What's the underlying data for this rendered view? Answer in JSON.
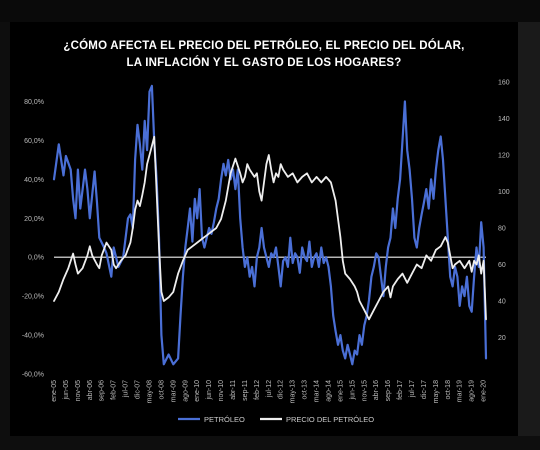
{
  "chart_data": {
    "type": "line",
    "title_line1": "¿CÓMO AFECTA EL PRECIO DEL PETRÓLEO, EL PRECIO DEL DÓLAR,",
    "title_line2": "LA INFLACIÓN Y EL GASTO DE LOS HOGARES?",
    "y_left": {
      "ticks": [
        "80,0%",
        "60,0%",
        "40,0%",
        "20,0%",
        "0,0%",
        "-20,0%",
        "-40,0%",
        "-60,0%"
      ],
      "values": [
        80,
        60,
        40,
        20,
        0,
        -20,
        -40,
        -60
      ],
      "ylim": [
        -60,
        90
      ]
    },
    "y_right": {
      "ticks": [
        "160",
        "140",
        "120",
        "100",
        "80",
        "60",
        "40",
        "20"
      ],
      "values": [
        160,
        140,
        120,
        100,
        80,
        60,
        40,
        20
      ],
      "ylim": [
        0,
        160
      ]
    },
    "x_ticks": [
      "ene-05",
      "jun-05",
      "nov-05",
      "abr-06",
      "sep-06",
      "feb-07",
      "jul-07",
      "dic-07",
      "may-08",
      "oct-08",
      "mar-09",
      "ago-09",
      "ene-10",
      "jun-10",
      "nov-10",
      "abr-11",
      "sep-11",
      "feb-12",
      "jul-12",
      "dic-12",
      "may-13",
      "oct-13",
      "mar-14",
      "ago-14",
      "ene-15",
      "jun-15",
      "nov-15",
      "abr-16",
      "sep-16",
      "feb-17",
      "jul-17",
      "dic-17",
      "may-18",
      "oct-18",
      "mar-19",
      "ago-19",
      "ene-20"
    ],
    "x_range_months": [
      0,
      181
    ],
    "series": [
      {
        "name": "PETRÓLEO",
        "axis": "left",
        "color": "#4a6fd6",
        "points": [
          [
            0,
            40
          ],
          [
            2,
            58
          ],
          [
            4,
            42
          ],
          [
            5,
            52
          ],
          [
            7,
            45
          ],
          [
            8,
            30
          ],
          [
            9,
            20
          ],
          [
            10,
            45
          ],
          [
            11,
            25
          ],
          [
            13,
            45
          ],
          [
            14,
            35
          ],
          [
            15,
            20
          ],
          [
            17,
            44
          ],
          [
            18,
            28
          ],
          [
            19,
            10
          ],
          [
            21,
            5
          ],
          [
            22,
            2
          ],
          [
            24,
            -10
          ],
          [
            25,
            5
          ],
          [
            27,
            -5
          ],
          [
            29,
            0
          ],
          [
            30,
            10
          ],
          [
            31,
            20
          ],
          [
            32,
            22
          ],
          [
            33,
            15
          ],
          [
            34,
            50
          ],
          [
            35,
            68
          ],
          [
            36,
            58
          ],
          [
            37,
            45
          ],
          [
            38,
            70
          ],
          [
            39,
            55
          ],
          [
            40,
            85
          ],
          [
            41,
            88
          ],
          [
            42,
            60
          ],
          [
            43,
            40
          ],
          [
            44,
            10
          ],
          [
            45,
            -40
          ],
          [
            46,
            -55
          ],
          [
            48,
            -50
          ],
          [
            50,
            -55
          ],
          [
            52,
            -52
          ],
          [
            53,
            -30
          ],
          [
            54,
            -10
          ],
          [
            55,
            5
          ],
          [
            56,
            15
          ],
          [
            57,
            25
          ],
          [
            58,
            8
          ],
          [
            59,
            30
          ],
          [
            60,
            20
          ],
          [
            61,
            35
          ],
          [
            62,
            10
          ],
          [
            63,
            5
          ],
          [
            65,
            15
          ],
          [
            66,
            12
          ],
          [
            67,
            18
          ],
          [
            68,
            25
          ],
          [
            69,
            30
          ],
          [
            70,
            40
          ],
          [
            71,
            48
          ],
          [
            72,
            42
          ],
          [
            73,
            50
          ],
          [
            74,
            40
          ],
          [
            75,
            45
          ],
          [
            76,
            35
          ],
          [
            77,
            45
          ],
          [
            78,
            20
          ],
          [
            79,
            5
          ],
          [
            80,
            -5
          ],
          [
            81,
            0
          ],
          [
            82,
            -10
          ],
          [
            83,
            -5
          ],
          [
            84,
            -15
          ],
          [
            85,
            0
          ],
          [
            86,
            5
          ],
          [
            87,
            15
          ],
          [
            88,
            5
          ],
          [
            89,
            0
          ],
          [
            90,
            -5
          ],
          [
            91,
            2
          ],
          [
            92,
            0
          ],
          [
            93,
            5
          ],
          [
            94,
            -5
          ],
          [
            95,
            -15
          ],
          [
            96,
            -2
          ],
          [
            97,
            0
          ],
          [
            98,
            -5
          ],
          [
            99,
            10
          ],
          [
            100,
            -3
          ],
          [
            101,
            2
          ],
          [
            102,
            0
          ],
          [
            103,
            -8
          ],
          [
            104,
            5
          ],
          [
            105,
            0
          ],
          [
            106,
            -2
          ],
          [
            107,
            8
          ],
          [
            108,
            -5
          ],
          [
            109,
            0
          ],
          [
            110,
            2
          ],
          [
            111,
            -5
          ],
          [
            112,
            5
          ],
          [
            113,
            -3
          ],
          [
            114,
            0
          ],
          [
            115,
            -5
          ],
          [
            116,
            -15
          ],
          [
            117,
            -30
          ],
          [
            118,
            -38
          ],
          [
            119,
            -45
          ],
          [
            120,
            -40
          ],
          [
            121,
            -48
          ],
          [
            122,
            -52
          ],
          [
            123,
            -45
          ],
          [
            124,
            -50
          ],
          [
            125,
            -55
          ],
          [
            126,
            -48
          ],
          [
            127,
            -50
          ],
          [
            128,
            -40
          ],
          [
            129,
            -45
          ],
          [
            130,
            -35
          ],
          [
            131,
            -30
          ],
          [
            132,
            -22
          ],
          [
            133,
            -10
          ],
          [
            134,
            -5
          ],
          [
            135,
            2
          ],
          [
            136,
            0
          ],
          [
            137,
            -10
          ],
          [
            138,
            -20
          ],
          [
            139,
            -5
          ],
          [
            140,
            5
          ],
          [
            141,
            10
          ],
          [
            142,
            25
          ],
          [
            143,
            15
          ],
          [
            144,
            30
          ],
          [
            145,
            40
          ],
          [
            146,
            60
          ],
          [
            147,
            80
          ],
          [
            148,
            55
          ],
          [
            149,
            45
          ],
          [
            150,
            30
          ],
          [
            151,
            10
          ],
          [
            152,
            5
          ],
          [
            153,
            15
          ],
          [
            154,
            22
          ],
          [
            155,
            28
          ],
          [
            156,
            35
          ],
          [
            157,
            25
          ],
          [
            158,
            40
          ],
          [
            159,
            30
          ],
          [
            160,
            45
          ],
          [
            161,
            55
          ],
          [
            162,
            62
          ],
          [
            163,
            50
          ],
          [
            164,
            30
          ],
          [
            165,
            10
          ],
          [
            166,
            -10
          ],
          [
            167,
            -15
          ],
          [
            168,
            -5
          ],
          [
            169,
            -10
          ],
          [
            170,
            -25
          ],
          [
            171,
            -15
          ],
          [
            172,
            -20
          ],
          [
            173,
            -10
          ],
          [
            174,
            -25
          ],
          [
            175,
            -28
          ],
          [
            176,
            -10
          ],
          [
            177,
            5
          ],
          [
            178,
            -5
          ],
          [
            179,
            18
          ],
          [
            180,
            5
          ],
          [
            181,
            -52
          ]
        ]
      },
      {
        "name": "PRECIO DEL PETRÓLEO",
        "axis": "right",
        "color": "#eeeeee",
        "points": [
          [
            0,
            40
          ],
          [
            2,
            45
          ],
          [
            4,
            52
          ],
          [
            6,
            58
          ],
          [
            8,
            66
          ],
          [
            9,
            60
          ],
          [
            10,
            55
          ],
          [
            12,
            58
          ],
          [
            14,
            65
          ],
          [
            15,
            70
          ],
          [
            16,
            65
          ],
          [
            18,
            60
          ],
          [
            19,
            58
          ],
          [
            20,
            65
          ],
          [
            22,
            72
          ],
          [
            24,
            68
          ],
          [
            25,
            60
          ],
          [
            26,
            58
          ],
          [
            28,
            62
          ],
          [
            30,
            65
          ],
          [
            32,
            72
          ],
          [
            33,
            80
          ],
          [
            34,
            90
          ],
          [
            35,
            95
          ],
          [
            36,
            92
          ],
          [
            37,
            98
          ],
          [
            38,
            105
          ],
          [
            39,
            115
          ],
          [
            40,
            120
          ],
          [
            41,
            125
          ],
          [
            42,
            130
          ],
          [
            43,
            100
          ],
          [
            44,
            70
          ],
          [
            45,
            45
          ],
          [
            46,
            40
          ],
          [
            48,
            42
          ],
          [
            50,
            45
          ],
          [
            52,
            55
          ],
          [
            54,
            62
          ],
          [
            56,
            68
          ],
          [
            58,
            70
          ],
          [
            60,
            72
          ],
          [
            62,
            74
          ],
          [
            64,
            76
          ],
          [
            66,
            78
          ],
          [
            68,
            80
          ],
          [
            70,
            85
          ],
          [
            72,
            95
          ],
          [
            74,
            110
          ],
          [
            76,
            118
          ],
          [
            78,
            110
          ],
          [
            79,
            105
          ],
          [
            80,
            108
          ],
          [
            81,
            115
          ],
          [
            82,
            112
          ],
          [
            84,
            108
          ],
          [
            85,
            110
          ],
          [
            86,
            100
          ],
          [
            87,
            95
          ],
          [
            88,
            105
          ],
          [
            89,
            115
          ],
          [
            90,
            120
          ],
          [
            91,
            112
          ],
          [
            92,
            105
          ],
          [
            93,
            110
          ],
          [
            94,
            108
          ],
          [
            95,
            115
          ],
          [
            96,
            112
          ],
          [
            98,
            108
          ],
          [
            100,
            110
          ],
          [
            102,
            105
          ],
          [
            104,
            108
          ],
          [
            106,
            110
          ],
          [
            108,
            105
          ],
          [
            110,
            108
          ],
          [
            112,
            105
          ],
          [
            114,
            108
          ],
          [
            116,
            105
          ],
          [
            118,
            95
          ],
          [
            119,
            85
          ],
          [
            120,
            75
          ],
          [
            121,
            62
          ],
          [
            122,
            55
          ],
          [
            124,
            52
          ],
          [
            126,
            48
          ],
          [
            127,
            45
          ],
          [
            128,
            40
          ],
          [
            130,
            35
          ],
          [
            132,
            30
          ],
          [
            134,
            35
          ],
          [
            136,
            40
          ],
          [
            138,
            45
          ],
          [
            140,
            48
          ],
          [
            141,
            42
          ],
          [
            142,
            48
          ],
          [
            144,
            52
          ],
          [
            146,
            55
          ],
          [
            148,
            50
          ],
          [
            150,
            55
          ],
          [
            152,
            60
          ],
          [
            154,
            58
          ],
          [
            156,
            65
          ],
          [
            158,
            62
          ],
          [
            160,
            68
          ],
          [
            162,
            70
          ],
          [
            164,
            75
          ],
          [
            165,
            72
          ],
          [
            166,
            65
          ],
          [
            167,
            58
          ],
          [
            168,
            60
          ],
          [
            170,
            62
          ],
          [
            172,
            58
          ],
          [
            174,
            62
          ],
          [
            175,
            56
          ],
          [
            176,
            62
          ],
          [
            177,
            60
          ],
          [
            178,
            65
          ],
          [
            179,
            55
          ],
          [
            180,
            62
          ],
          [
            181,
            30
          ]
        ]
      }
    ],
    "legend": {
      "position": "bottom-center"
    }
  }
}
